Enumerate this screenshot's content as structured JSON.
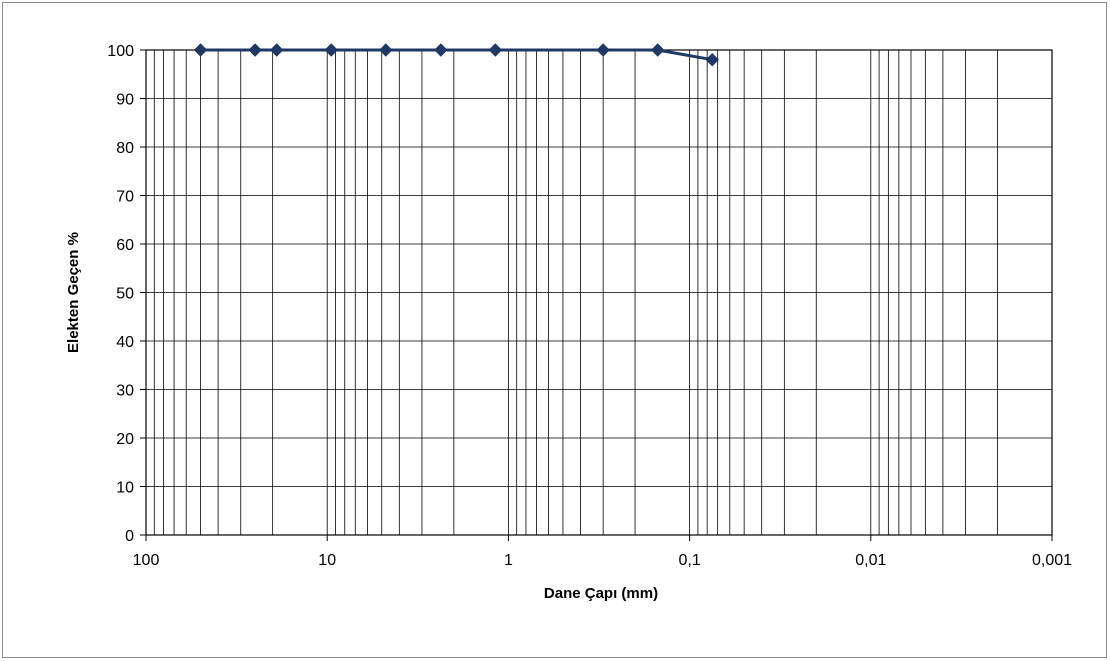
{
  "chart_data": {
    "type": "line",
    "title": "",
    "xlabel": "Dane Çapı (mm)",
    "ylabel": "Elekten Geçen %",
    "x_scale": "log",
    "x_reversed": true,
    "xlim": [
      100,
      0.001
    ],
    "ylim": [
      0,
      100
    ],
    "grid": true,
    "legend": "none",
    "x_tick_labels": [
      "100",
      "10",
      "1",
      "0,1",
      "0,01",
      "0,001"
    ],
    "y_tick_labels": [
      "0",
      "10",
      "20",
      "30",
      "40",
      "50",
      "60",
      "70",
      "80",
      "90",
      "100"
    ],
    "series": [
      {
        "color": "#1f3864",
        "marker": "diamond",
        "x": [
          50,
          25,
          19,
          9.5,
          4.75,
          2.36,
          1.18,
          0.3,
          0.15,
          0.075
        ],
        "y": [
          100,
          100,
          100,
          100,
          100,
          100,
          100,
          100,
          100,
          98
        ]
      }
    ]
  }
}
